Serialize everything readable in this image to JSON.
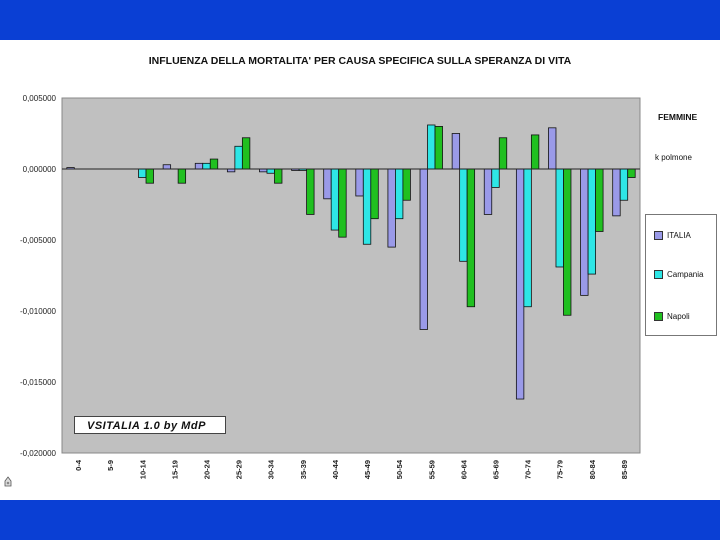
{
  "chart_data": {
    "type": "bar",
    "title": "INFLUENZA DELLA MORTALITA' PER CAUSA SPECIFICA SULLA SPERANZA DI VITA",
    "categories": [
      "0-4",
      "5-9",
      "10-14",
      "15-19",
      "20-24",
      "25-29",
      "30-34",
      "35-39",
      "40-44",
      "45-49",
      "50-54",
      "55-59",
      "60-64",
      "65-69",
      "70-74",
      "75-79",
      "80-84",
      "85-89"
    ],
    "ylim": [
      -0.02,
      0.005
    ],
    "yticks": [
      0.005,
      0,
      -0.005,
      -0.01,
      -0.015,
      -0.02
    ],
    "ytick_labels": [
      "0,005000",
      "0,000000",
      "-0,005000",
      "-0,010000",
      "-0,015000",
      "-0,020000"
    ],
    "series": [
      {
        "name": "ITALIA",
        "color": "#9a9ae8",
        "values": [
          0.0001,
          0,
          0,
          0.0003,
          0.0004,
          -0.0002,
          -0.0002,
          -0.0001,
          -0.0021,
          -0.0019,
          -0.0055,
          -0.0113,
          0.0025,
          -0.0032,
          -0.0162,
          0.0029,
          -0.0089,
          -0.0033
        ]
      },
      {
        "name": "Campania",
        "color": "#2ee6e6",
        "values": [
          0,
          0,
          -0.0006,
          0,
          0.0004,
          0.0016,
          -0.0003,
          -0.0001,
          -0.0043,
          -0.0053,
          -0.0035,
          0.0031,
          -0.0065,
          -0.0013,
          -0.0097,
          -0.0069,
          -0.0074,
          -0.0022
        ]
      },
      {
        "name": "Napoli",
        "color": "#20c020",
        "values": [
          0,
          0,
          -0.001,
          -0.001,
          0.0007,
          0.0022,
          -0.001,
          -0.0032,
          -0.0048,
          -0.0035,
          -0.0022,
          0.003,
          -0.0097,
          0.0022,
          0.0024,
          -0.0103,
          -0.0044,
          -0.0006
        ]
      }
    ],
    "legend_placement": "right",
    "grid": false,
    "plot_bg": "#c0c0c0"
  },
  "side_labels": {
    "label_1": "FEMMINE",
    "label_2": "k polmone"
  },
  "watermark": "VSITALIA 1.0 by MdP"
}
